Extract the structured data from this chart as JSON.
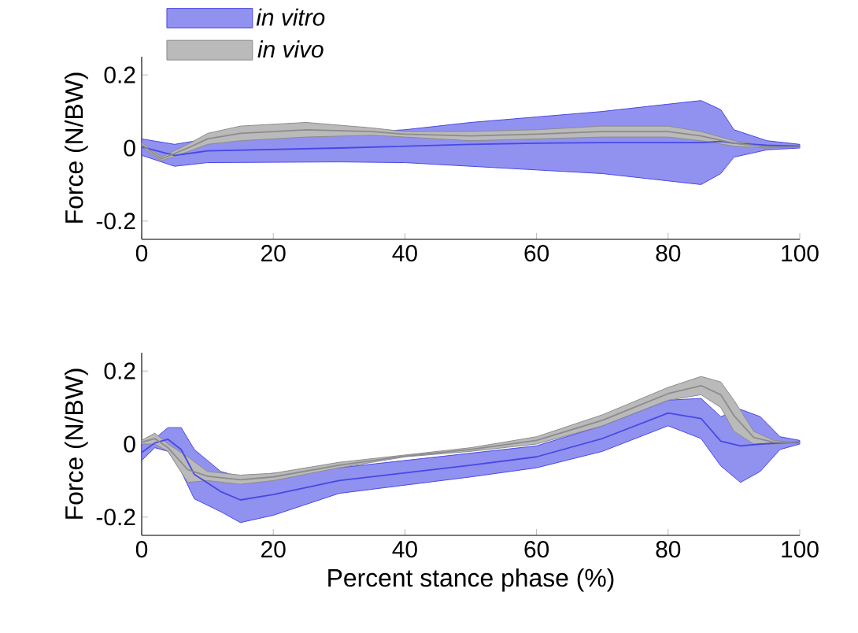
{
  "chart_data": [
    {
      "type": "line",
      "ylabel": "Force (N/BW)",
      "xlim": [
        0,
        100
      ],
      "ylim": [
        -0.25,
        0.25
      ],
      "xticks": [
        0,
        20,
        40,
        60,
        80,
        100
      ],
      "yticks": [
        -0.2,
        0,
        0.2
      ],
      "legend": "top left",
      "grid": false,
      "series": [
        {
          "name": "in vitro",
          "color": "#4848e6",
          "x": [
            0,
            5,
            10,
            30,
            40,
            50,
            60,
            70,
            80,
            85,
            88,
            90,
            95,
            100
          ],
          "values": [
            0.003,
            -0.02,
            -0.008,
            0,
            0.005,
            0.01,
            0.013,
            0.015,
            0.015,
            0.015,
            0.018,
            0.013,
            0.008,
            0.005
          ],
          "upper": [
            0.025,
            0.01,
            0.025,
            0.04,
            0.05,
            0.07,
            0.085,
            0.1,
            0.12,
            0.13,
            0.105,
            0.05,
            0.02,
            0.01
          ],
          "lower": [
            -0.02,
            -0.05,
            -0.04,
            -0.038,
            -0.04,
            -0.05,
            -0.06,
            -0.07,
            -0.09,
            -0.1,
            -0.07,
            -0.025,
            -0.005,
            0
          ]
        },
        {
          "name": "in vivo",
          "color": "#8c8c8c",
          "x": [
            0,
            3,
            7,
            10,
            15,
            25,
            35,
            40,
            50,
            60,
            70,
            80,
            85,
            90,
            95,
            100
          ],
          "values": [
            0.009,
            -0.03,
            0,
            0.025,
            0.04,
            0.05,
            0.045,
            0.038,
            0.033,
            0.038,
            0.045,
            0.045,
            0.033,
            0.013,
            0.003,
            0.003
          ],
          "upper": [
            0.015,
            -0.025,
            0.01,
            0.04,
            0.06,
            0.07,
            0.055,
            0.045,
            0.045,
            0.05,
            0.06,
            0.06,
            0.045,
            0.02,
            0.005,
            0.003
          ],
          "lower": [
            0.003,
            -0.035,
            -0.01,
            0.01,
            0.02,
            0.03,
            0.035,
            0.03,
            0.02,
            0.025,
            0.03,
            0.03,
            0.02,
            0.005,
            0,
            0.003
          ]
        }
      ]
    },
    {
      "type": "line",
      "xlabel": "Percent stance phase (%)",
      "ylabel": "Force (N/BW)",
      "xlim": [
        0,
        100
      ],
      "ylim": [
        -0.25,
        0.25
      ],
      "xticks": [
        0,
        20,
        40,
        60,
        80,
        100
      ],
      "yticks": [
        -0.2,
        0,
        0.2
      ],
      "grid": false,
      "series": [
        {
          "color": "#4848e6",
          "x": [
            0,
            2,
            4,
            6,
            8,
            12,
            15,
            20,
            30,
            50,
            60,
            70,
            80,
            85,
            88,
            91,
            94,
            97,
            100
          ],
          "values": [
            -0.023,
            0.003,
            0.013,
            -0.015,
            -0.083,
            -0.13,
            -0.153,
            -0.138,
            -0.1,
            -0.058,
            -0.035,
            0.015,
            0.085,
            0.07,
            0.008,
            -0.005,
            0,
            0.003,
            0.005
          ],
          "upper": [
            0,
            0.015,
            0.045,
            0.045,
            -0.015,
            -0.075,
            -0.09,
            -0.08,
            -0.065,
            -0.025,
            -0.005,
            0.05,
            0.12,
            0.125,
            0.075,
            0.095,
            0.075,
            0.02,
            0.01
          ],
          "lower": [
            -0.045,
            -0.01,
            -0.02,
            -0.075,
            -0.15,
            -0.185,
            -0.215,
            -0.195,
            -0.135,
            -0.09,
            -0.065,
            -0.02,
            0.05,
            0.015,
            -0.06,
            -0.105,
            -0.075,
            -0.015,
            0
          ]
        },
        {
          "color": "#8c8c8c",
          "x": [
            0,
            2,
            4,
            7,
            10,
            15,
            20,
            30,
            40,
            50,
            60,
            70,
            80,
            85,
            88,
            90,
            93,
            96,
            100
          ],
          "values": [
            0.005,
            0.015,
            -0.01,
            -0.07,
            -0.088,
            -0.098,
            -0.09,
            -0.058,
            -0.033,
            -0.015,
            0.01,
            0.065,
            0.138,
            0.16,
            0.135,
            0.078,
            0.018,
            0.005,
            0.003
          ],
          "upper": [
            0.01,
            0.03,
            0,
            -0.035,
            -0.075,
            -0.085,
            -0.08,
            -0.05,
            -0.03,
            -0.01,
            0.02,
            0.08,
            0.155,
            0.185,
            0.17,
            0.12,
            0.035,
            0.01,
            0.003
          ],
          "lower": [
            0,
            0,
            -0.02,
            -0.105,
            -0.1,
            -0.11,
            -0.1,
            -0.065,
            -0.035,
            -0.02,
            0,
            0.05,
            0.12,
            0.135,
            0.1,
            0.035,
            0,
            0,
            0.003
          ]
        }
      ]
    }
  ]
}
